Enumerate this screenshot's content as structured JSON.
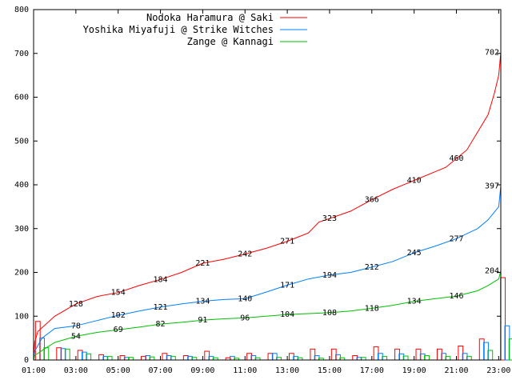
{
  "chart_data": {
    "type": "line",
    "title": "",
    "xlabel": "",
    "ylabel": "",
    "xlim": [
      1,
      23.1
    ],
    "ylim": [
      0,
      800
    ],
    "grid": false,
    "legend_position": "top-right",
    "x_ticks": [
      "01:00",
      "03:00",
      "05:00",
      "07:00",
      "09:00",
      "11:00",
      "13:00",
      "15:00",
      "17:00",
      "19:00",
      "21:00",
      "23:00"
    ],
    "y_ticks": [
      0,
      100,
      200,
      300,
      400,
      500,
      600,
      700,
      800
    ],
    "series": [
      {
        "name": "Nodoka Haramura @ Saki",
        "color": "#ff0000",
        "cumulative": [
          [
            1,
            0
          ],
          [
            1.05,
            40
          ],
          [
            1.2,
            65
          ],
          [
            2,
            100
          ],
          [
            3,
            128
          ],
          [
            4,
            145
          ],
          [
            5,
            154
          ],
          [
            6,
            170
          ],
          [
            7,
            184
          ],
          [
            8,
            200
          ],
          [
            9,
            221
          ],
          [
            10,
            230
          ],
          [
            11,
            242
          ],
          [
            12,
            255
          ],
          [
            13,
            271
          ],
          [
            14,
            290
          ],
          [
            14.5,
            315
          ],
          [
            15,
            323
          ],
          [
            16,
            340
          ],
          [
            17,
            366
          ],
          [
            18,
            390
          ],
          [
            19,
            410
          ],
          [
            20,
            430
          ],
          [
            20.5,
            440
          ],
          [
            21,
            460
          ],
          [
            21.5,
            480
          ],
          [
            22,
            520
          ],
          [
            22.5,
            560
          ],
          [
            22.8,
            610
          ],
          [
            23,
            650
          ],
          [
            23.1,
            702
          ]
        ],
        "hourly": [
          [
            1.2,
            88
          ],
          [
            2.2,
            28
          ],
          [
            3.2,
            22
          ],
          [
            4.2,
            12
          ],
          [
            5.2,
            10
          ],
          [
            6.2,
            8
          ],
          [
            7.2,
            15
          ],
          [
            8.2,
            10
          ],
          [
            9.2,
            20
          ],
          [
            10.2,
            5
          ],
          [
            11.2,
            15
          ],
          [
            12.2,
            15
          ],
          [
            13.2,
            15
          ],
          [
            14.2,
            25
          ],
          [
            15.2,
            25
          ],
          [
            16.2,
            10
          ],
          [
            17.2,
            30
          ],
          [
            18.2,
            25
          ],
          [
            19.2,
            25
          ],
          [
            20.2,
            25
          ],
          [
            21.2,
            32
          ],
          [
            22.2,
            48
          ],
          [
            23.2,
            188
          ]
        ],
        "labels": [
          {
            "x": 3,
            "y": 128,
            "text": "128"
          },
          {
            "x": 5,
            "y": 154,
            "text": "154"
          },
          {
            "x": 7,
            "y": 184,
            "text": "184"
          },
          {
            "x": 9,
            "y": 221,
            "text": "221"
          },
          {
            "x": 11,
            "y": 242,
            "text": "242"
          },
          {
            "x": 13,
            "y": 271,
            "text": "271"
          },
          {
            "x": 15,
            "y": 323,
            "text": "323"
          },
          {
            "x": 17,
            "y": 366,
            "text": "366"
          },
          {
            "x": 19,
            "y": 410,
            "text": "410"
          },
          {
            "x": 21,
            "y": 460,
            "text": "460"
          },
          {
            "x": 23.1,
            "y": 702,
            "text": "702"
          }
        ]
      },
      {
        "name": "Yoshika Miyafuji @ Strike Witches",
        "color": "#0080ff",
        "cumulative": [
          [
            1,
            0
          ],
          [
            1.05,
            20
          ],
          [
            1.4,
            50
          ],
          [
            2,
            72
          ],
          [
            3,
            78
          ],
          [
            4,
            90
          ],
          [
            5,
            102
          ],
          [
            6,
            112
          ],
          [
            7,
            121
          ],
          [
            8,
            128
          ],
          [
            9,
            134
          ],
          [
            10,
            138
          ],
          [
            11,
            140
          ],
          [
            12,
            155
          ],
          [
            13,
            171
          ],
          [
            14,
            185
          ],
          [
            15,
            194
          ],
          [
            16,
            200
          ],
          [
            17,
            212
          ],
          [
            18,
            225
          ],
          [
            19,
            245
          ],
          [
            20,
            260
          ],
          [
            21,
            277
          ],
          [
            22,
            300
          ],
          [
            22.5,
            320
          ],
          [
            23,
            350
          ],
          [
            23.1,
            397
          ]
        ],
        "hourly": [
          [
            1.4,
            50
          ],
          [
            2.4,
            26
          ],
          [
            3.4,
            18
          ],
          [
            4.4,
            8
          ],
          [
            5.4,
            6
          ],
          [
            6.4,
            10
          ],
          [
            7.4,
            10
          ],
          [
            8.4,
            8
          ],
          [
            9.4,
            8
          ],
          [
            10.4,
            8
          ],
          [
            11.4,
            10
          ],
          [
            12.4,
            15
          ],
          [
            13.4,
            8
          ],
          [
            14.4,
            10
          ],
          [
            15.4,
            12
          ],
          [
            16.4,
            6
          ],
          [
            17.4,
            15
          ],
          [
            18.4,
            14
          ],
          [
            19.4,
            14
          ],
          [
            20.4,
            15
          ],
          [
            21.4,
            15
          ],
          [
            22.4,
            40
          ],
          [
            23.4,
            78
          ]
        ],
        "labels": [
          {
            "x": 3,
            "y": 78,
            "text": "78"
          },
          {
            "x": 5,
            "y": 102,
            "text": "102"
          },
          {
            "x": 7,
            "y": 121,
            "text": "121"
          },
          {
            "x": 9,
            "y": 134,
            "text": "134"
          },
          {
            "x": 11,
            "y": 140,
            "text": "140"
          },
          {
            "x": 13,
            "y": 171,
            "text": "171"
          },
          {
            "x": 15,
            "y": 194,
            "text": "194"
          },
          {
            "x": 17,
            "y": 212,
            "text": "212"
          },
          {
            "x": 19,
            "y": 245,
            "text": "245"
          },
          {
            "x": 21,
            "y": 277,
            "text": "277"
          },
          {
            "x": 23.1,
            "y": 397,
            "text": "397"
          }
        ]
      },
      {
        "name": "Zange @ Kannagi",
        "color": "#00c000",
        "cumulative": [
          [
            1,
            0
          ],
          [
            1.05,
            10
          ],
          [
            1.5,
            25
          ],
          [
            2,
            40
          ],
          [
            3,
            54
          ],
          [
            4,
            63
          ],
          [
            5,
            69
          ],
          [
            6,
            75
          ],
          [
            7,
            82
          ],
          [
            8,
            86
          ],
          [
            9,
            91
          ],
          [
            10,
            94
          ],
          [
            11,
            96
          ],
          [
            12,
            100
          ],
          [
            13,
            104
          ],
          [
            14,
            106
          ],
          [
            15,
            108
          ],
          [
            16,
            112
          ],
          [
            17,
            118
          ],
          [
            18,
            125
          ],
          [
            19,
            134
          ],
          [
            20,
            140
          ],
          [
            21,
            146
          ],
          [
            22,
            158
          ],
          [
            22.5,
            170
          ],
          [
            23,
            185
          ],
          [
            23.1,
            204
          ]
        ],
        "hourly": [
          [
            1.6,
            28
          ],
          [
            2.6,
            25
          ],
          [
            3.6,
            14
          ],
          [
            4.6,
            8
          ],
          [
            5.6,
            6
          ],
          [
            6.6,
            7
          ],
          [
            7.6,
            8
          ],
          [
            8.6,
            6
          ],
          [
            9.6,
            5
          ],
          [
            10.6,
            4
          ],
          [
            11.6,
            5
          ],
          [
            12.6,
            6
          ],
          [
            13.6,
            5
          ],
          [
            14.6,
            4
          ],
          [
            15.6,
            5
          ],
          [
            16.6,
            6
          ],
          [
            17.6,
            8
          ],
          [
            18.6,
            9
          ],
          [
            19.6,
            10
          ],
          [
            20.6,
            8
          ],
          [
            21.6,
            8
          ],
          [
            22.6,
            22
          ],
          [
            23.6,
            48
          ]
        ],
        "labels": [
          {
            "x": 3,
            "y": 54,
            "text": "54"
          },
          {
            "x": 5,
            "y": 69,
            "text": "69"
          },
          {
            "x": 7,
            "y": 82,
            "text": "82"
          },
          {
            "x": 9,
            "y": 91,
            "text": "91"
          },
          {
            "x": 11,
            "y": 96,
            "text": "96"
          },
          {
            "x": 13,
            "y": 104,
            "text": "104"
          },
          {
            "x": 15,
            "y": 108,
            "text": "108"
          },
          {
            "x": 17,
            "y": 118,
            "text": "118"
          },
          {
            "x": 19,
            "y": 134,
            "text": "134"
          },
          {
            "x": 21,
            "y": 146,
            "text": "146"
          },
          {
            "x": 23.1,
            "y": 204,
            "text": "204"
          }
        ]
      }
    ]
  }
}
